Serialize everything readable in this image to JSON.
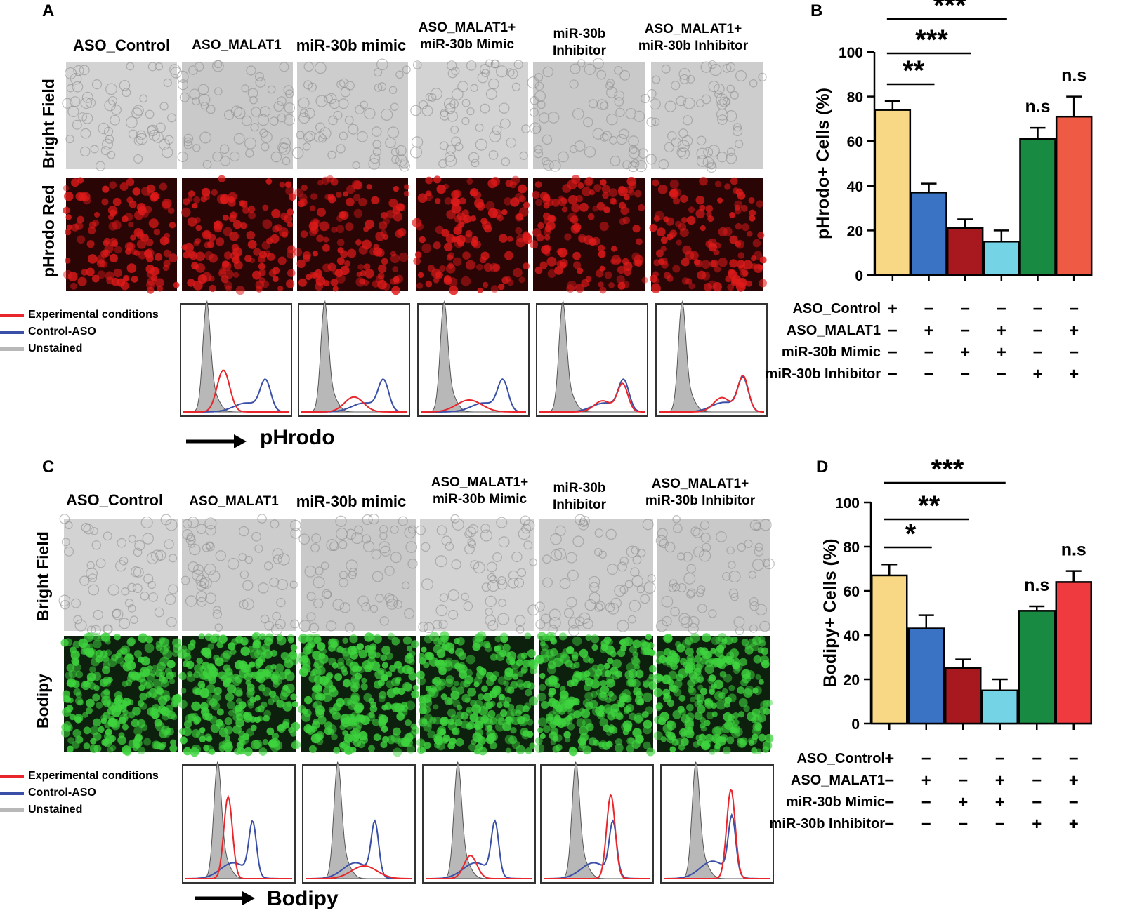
{
  "panels": {
    "A": {
      "letter": "A",
      "columns": [
        "ASO_Control",
        "ASO_MALAT1",
        "miR-30b mimic",
        "ASO_MALAT1+\nmiR-30b Mimic",
        "miR-30b\nInhibitor",
        "ASO_MALAT1+\nmiR-30b Inhibitor"
      ],
      "rows": [
        "Bright Field",
        "pHrodo Red"
      ],
      "legend": [
        "Experimental conditions",
        "Control-ASO",
        "Unstained"
      ],
      "axis_label": "pHrodo"
    },
    "C": {
      "letter": "C",
      "columns": [
        "ASO_Control",
        "ASO_MALAT1",
        "miR-30b mimic",
        "ASO_MALAT1+\nmiR-30b Mimic",
        "miR-30b\nInhibitor",
        "ASO_MALAT1+\nmiR-30b Inhibitor"
      ],
      "rows": [
        "Bright Field",
        "Bodipy"
      ],
      "legend": [
        "Experimental conditions",
        "Control-ASO",
        "Unstained"
      ],
      "axis_label": "Bodipy"
    },
    "B": {
      "letter": "B"
    },
    "D": {
      "letter": "D"
    }
  },
  "colors": {
    "experimental": "#e8262b",
    "control_aso": "#3a4fa8",
    "unstained": "#b8b8b8",
    "bars": [
      "#f8d884",
      "#3b73c4",
      "#a8191f",
      "#74d3e4",
      "#198a41",
      "#ef5a45"
    ],
    "bars_d": [
      "#f8d884",
      "#3b73c4",
      "#a8191f",
      "#74d3e4",
      "#198a41",
      "#ef3b40"
    ]
  },
  "chart_data": [
    {
      "type": "bar",
      "panel": "B",
      "ylabel": "pHrodo+ Cells (%)",
      "ylim": [
        0,
        100
      ],
      "yticks": [
        0,
        20,
        40,
        60,
        80,
        100
      ],
      "values": [
        74,
        37,
        21,
        15,
        61,
        71
      ],
      "errors": [
        4,
        4,
        4,
        5,
        5,
        9
      ],
      "significance": {
        "brackets": [
          {
            "from": 0,
            "to": 1,
            "label": "**"
          },
          {
            "from": 0,
            "to": 2,
            "label": "***"
          },
          {
            "from": 0,
            "to": 3,
            "label": "***"
          }
        ],
        "bar_labels": [
          {
            "bar": 4,
            "label": "n.s"
          },
          {
            "bar": 5,
            "label": "n.s"
          }
        ]
      },
      "design_rows": [
        {
          "label": "ASO_Control",
          "signs": [
            "+",
            "−",
            "−",
            "−",
            "−",
            "−"
          ]
        },
        {
          "label": "ASO_MALAT1",
          "signs": [
            "−",
            "+",
            "−",
            "+",
            "−",
            "+"
          ]
        },
        {
          "label": "miR-30b Mimic",
          "signs": [
            "−",
            "−",
            "+",
            "+",
            "−",
            "−"
          ]
        },
        {
          "label": "miR-30b Inhibitor",
          "signs": [
            "−",
            "−",
            "−",
            "−",
            "+",
            "+"
          ]
        }
      ]
    },
    {
      "type": "bar",
      "panel": "D",
      "ylabel": "Bodipy+ Cells (%)",
      "ylim": [
        0,
        100
      ],
      "yticks": [
        0,
        20,
        40,
        60,
        80,
        100
      ],
      "values": [
        67,
        43,
        25,
        15,
        51,
        64
      ],
      "errors": [
        5,
        6,
        4,
        5,
        2,
        5
      ],
      "significance": {
        "brackets": [
          {
            "from": 0,
            "to": 1,
            "label": "*"
          },
          {
            "from": 0,
            "to": 2,
            "label": "**"
          },
          {
            "from": 0,
            "to": 3,
            "label": "***"
          }
        ],
        "bar_labels": [
          {
            "bar": 4,
            "label": "n.s"
          },
          {
            "bar": 5,
            "label": "n.s"
          }
        ]
      },
      "design_rows": [
        {
          "label": "ASO_Control",
          "signs": [
            "+",
            "−",
            "−",
            "−",
            "−",
            "−"
          ]
        },
        {
          "label": "ASO_MALAT1",
          "signs": [
            "−",
            "+",
            "−",
            "+",
            "−",
            "+"
          ]
        },
        {
          "label": "miR-30b Mimic",
          "signs": [
            "−",
            "−",
            "+",
            "+",
            "−",
            "−"
          ]
        },
        {
          "label": "miR-30b Inhibitor",
          "signs": [
            "−",
            "−",
            "−",
            "−",
            "+",
            "+"
          ]
        }
      ]
    }
  ]
}
